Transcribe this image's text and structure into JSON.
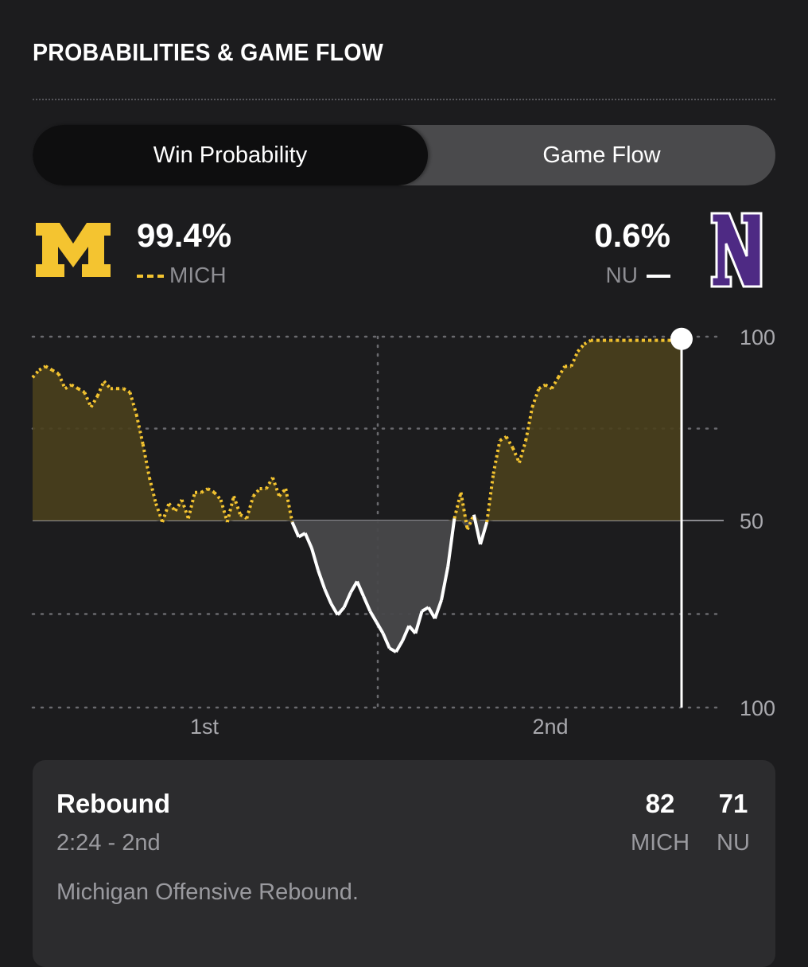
{
  "header": {
    "title": "PROBABILITIES & GAME FLOW"
  },
  "tabs": [
    {
      "label": "Win Probability",
      "active": true
    },
    {
      "label": "Game Flow",
      "active": false
    }
  ],
  "teams": {
    "home": {
      "abbr": "MICH",
      "pct": "99.4%",
      "color": "#f4c430",
      "logo": "michigan-block-m-logo",
      "logo_text": "M"
    },
    "away": {
      "abbr": "NU",
      "pct": "0.6%",
      "color": "#4e2a84",
      "logo": "northwestern-n-logo",
      "logo_text": "N"
    }
  },
  "chart_data": {
    "type": "line",
    "y_tick_labels": [
      "100",
      "50",
      "100"
    ],
    "x_tick_labels": [
      "1st",
      "2nd"
    ],
    "ylim": [
      0,
      100
    ],
    "xlim": [
      0,
      100
    ],
    "grid": true,
    "series": [
      {
        "name": "MICH",
        "color": "#f4c430",
        "style": "dotted",
        "x": [
          0,
          1,
          2,
          3,
          4,
          5,
          6,
          7,
          8,
          9,
          10,
          11,
          12,
          13,
          14,
          15,
          16,
          17,
          18,
          19,
          20,
          21,
          22,
          23,
          24,
          25,
          26,
          27,
          28,
          29,
          30,
          31,
          32,
          33,
          34,
          35,
          36,
          37,
          38,
          39,
          40,
          41,
          42,
          43,
          44,
          45,
          46,
          47,
          48,
          49,
          50,
          51,
          52,
          53,
          54,
          55,
          56,
          57,
          58,
          59,
          60,
          61,
          62,
          63,
          64,
          65,
          66,
          67,
          68,
          69,
          70,
          71,
          72,
          73,
          74,
          75,
          76,
          77,
          78,
          79,
          80,
          81,
          82,
          83,
          84,
          85,
          86,
          87,
          88,
          89,
          90,
          91,
          92,
          93,
          94,
          95,
          96,
          97,
          98,
          99,
          100
        ],
        "y": [
          89,
          91,
          92,
          91,
          90,
          86,
          87,
          86,
          85,
          81,
          84,
          88,
          86,
          86,
          86,
          85,
          79,
          71,
          62,
          55,
          50,
          55,
          53,
          56,
          51,
          58,
          58,
          59,
          58,
          56,
          50,
          57,
          52,
          51,
          57,
          59,
          59,
          62,
          57,
          59,
          50,
          46,
          47,
          43,
          37,
          32,
          28,
          25,
          27,
          31,
          34,
          30,
          26,
          23,
          20,
          16,
          15,
          18,
          22,
          20,
          26,
          27,
          24,
          29,
          38,
          51,
          58,
          48,
          52,
          44,
          50,
          63,
          72,
          73,
          70,
          66,
          72,
          81,
          86,
          87,
          86,
          89,
          92,
          92,
          96,
          98,
          99,
          99,
          99,
          99,
          99,
          99,
          99,
          99,
          99,
          99,
          99,
          99,
          99,
          99,
          99.4
        ]
      }
    ]
  },
  "play": {
    "type": "Rebound",
    "time": "2:24 - 2nd",
    "description": "Michigan Offensive Rebound.",
    "home_score": "82",
    "away_score": "71",
    "home_abbr": "MICH",
    "away_abbr": "NU"
  }
}
